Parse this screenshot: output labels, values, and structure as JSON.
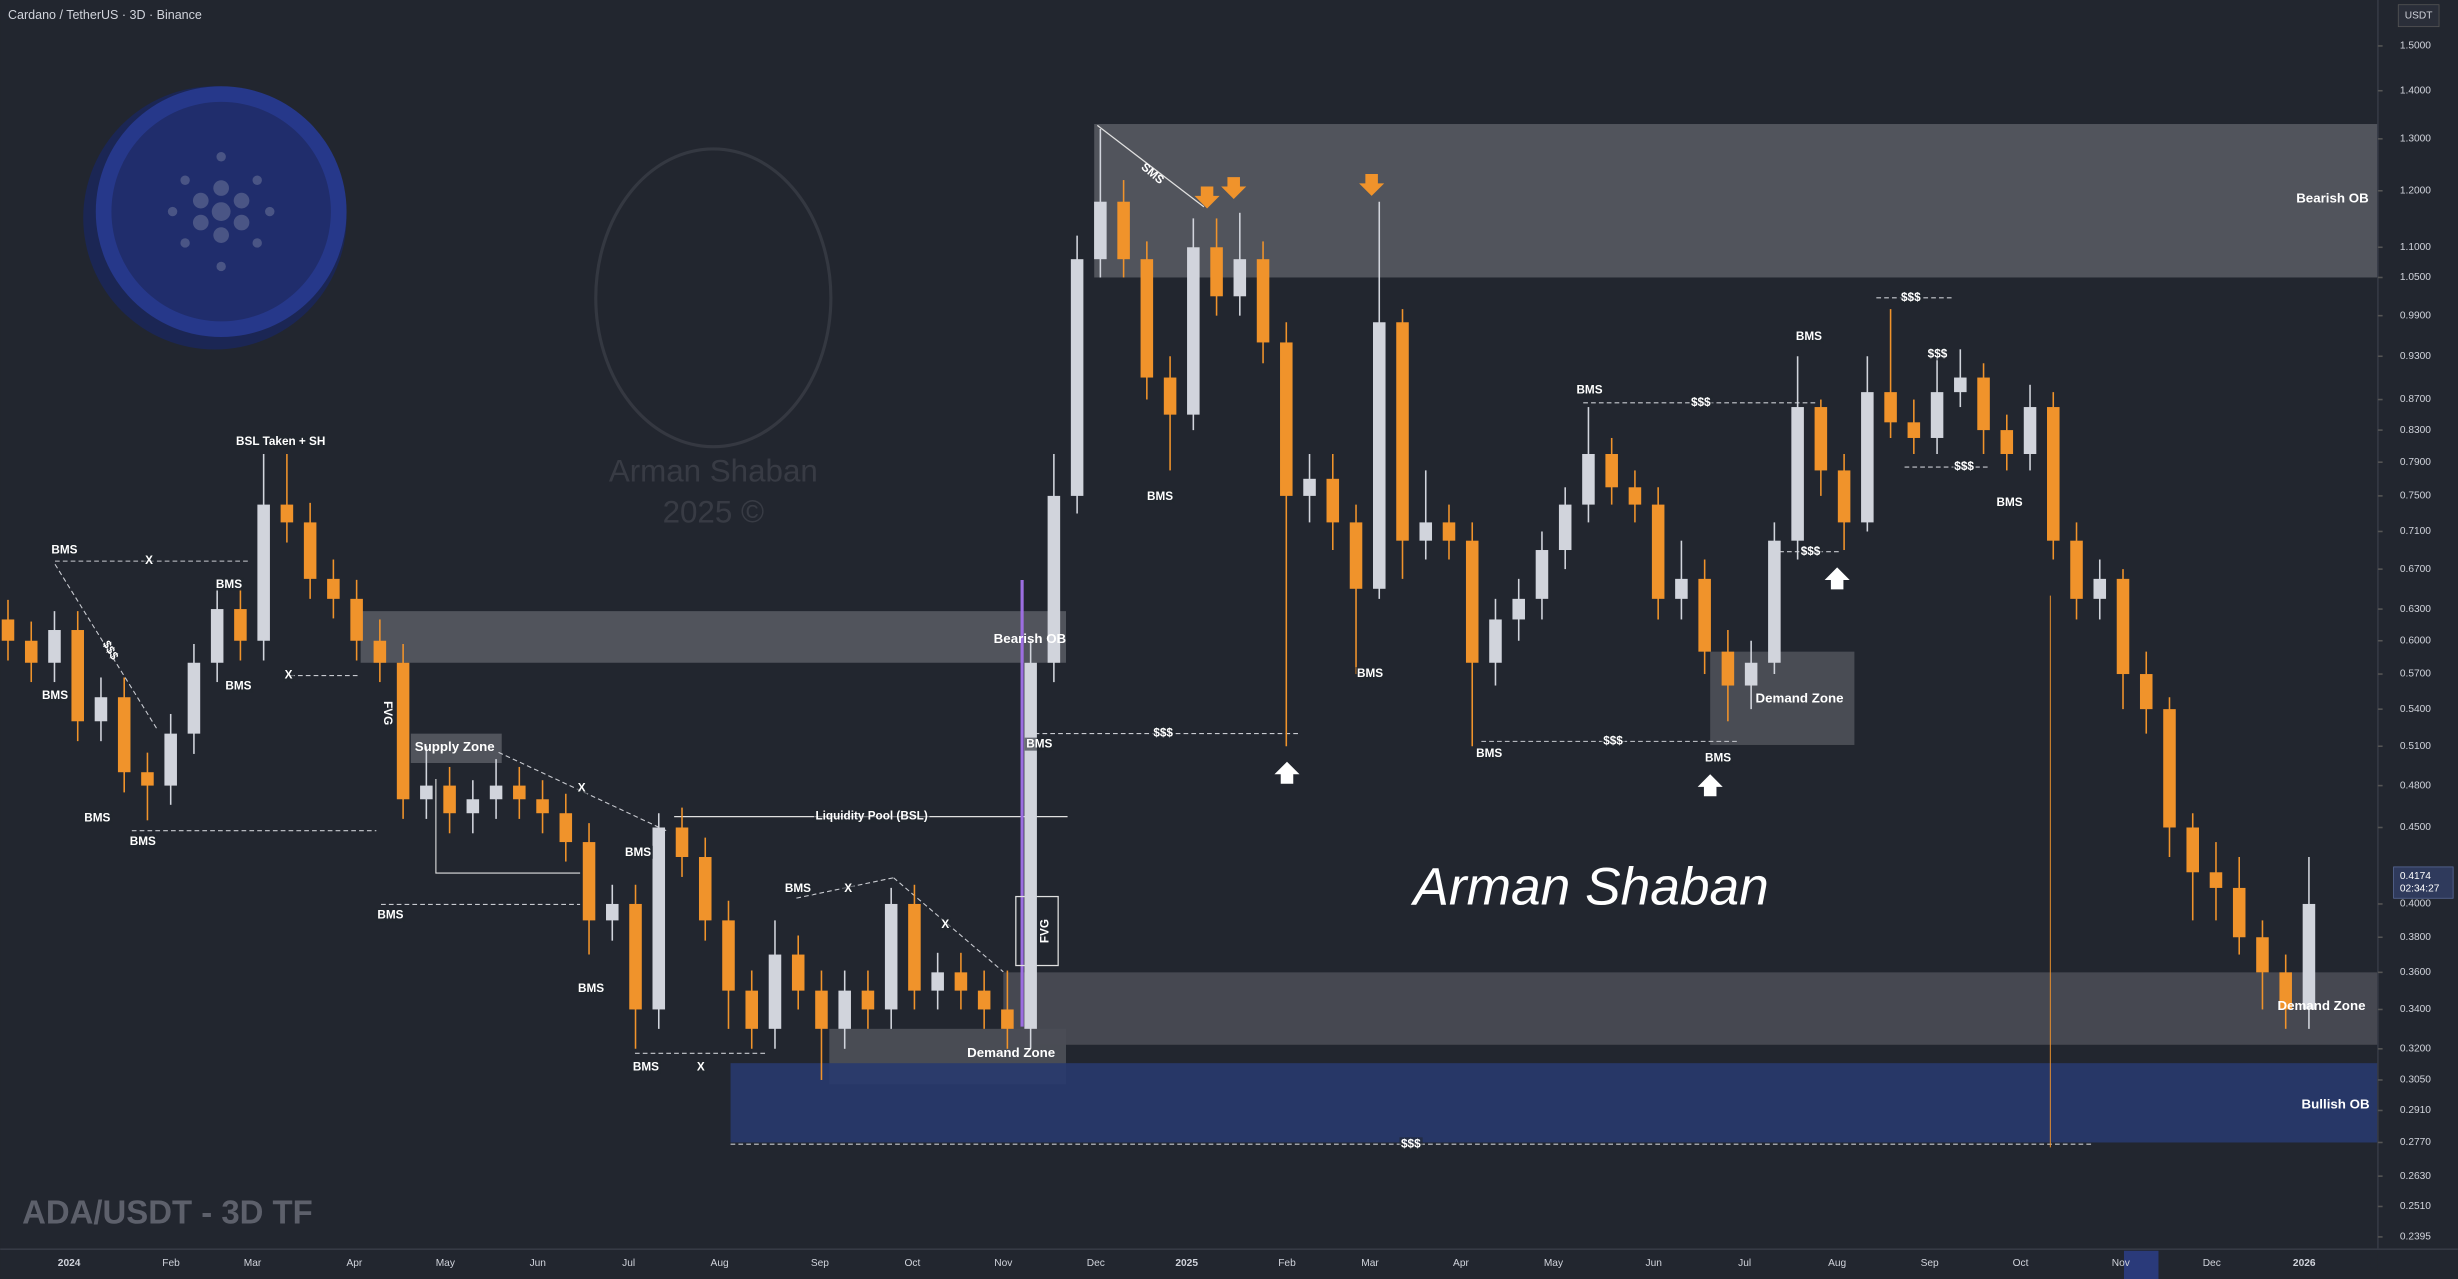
{
  "chart_data": {
    "type": "candlestick",
    "title": "Cardano / TetherUS · 3D · Binance",
    "subtitle": "ADA/USDT - 3D TF",
    "y_axis_label": "USDT",
    "log_scale": true,
    "ylim": [
      0.235,
      1.61
    ],
    "yticks": [
      {
        "value": 1.5,
        "label": "1.5000"
      },
      {
        "value": 1.4,
        "label": "1.4000"
      },
      {
        "value": 1.3,
        "label": "1.3000"
      },
      {
        "value": 1.2,
        "label": "1.2000"
      },
      {
        "value": 1.1,
        "label": "1.1000"
      },
      {
        "value": 1.05,
        "label": "1.0500"
      },
      {
        "value": 0.99,
        "label": "0.9900"
      },
      {
        "value": 0.93,
        "label": "0.9300"
      },
      {
        "value": 0.87,
        "label": "0.8700"
      },
      {
        "value": 0.83,
        "label": "0.8300"
      },
      {
        "value": 0.79,
        "label": "0.7900"
      },
      {
        "value": 0.75,
        "label": "0.7500"
      },
      {
        "value": 0.71,
        "label": "0.7100"
      },
      {
        "value": 0.67,
        "label": "0.6700"
      },
      {
        "value": 0.63,
        "label": "0.6300"
      },
      {
        "value": 0.6,
        "label": "0.6000"
      },
      {
        "value": 0.57,
        "label": "0.5700"
      },
      {
        "value": 0.54,
        "label": "0.5400"
      },
      {
        "value": 0.51,
        "label": "0.5100"
      },
      {
        "value": 0.48,
        "label": "0.4800"
      },
      {
        "value": 0.45,
        "label": "0.4500"
      },
      {
        "value": 0.4,
        "label": "0.4000"
      },
      {
        "value": 0.38,
        "label": "0.3800"
      },
      {
        "value": 0.36,
        "label": "0.3600"
      },
      {
        "value": 0.34,
        "label": "0.3400"
      },
      {
        "value": 0.32,
        "label": "0.3200"
      },
      {
        "value": 0.305,
        "label": "0.3050"
      },
      {
        "value": 0.291,
        "label": "0.2910"
      },
      {
        "value": 0.277,
        "label": "0.2770"
      },
      {
        "value": 0.263,
        "label": "0.2630"
      },
      {
        "value": 0.251,
        "label": "0.2510"
      },
      {
        "value": 0.2395,
        "label": "0.2395"
      }
    ],
    "x_labels": [
      "2024",
      "Feb",
      "Mar",
      "Apr",
      "May",
      "Jun",
      "Jul",
      "Aug",
      "Sep",
      "Oct",
      "Nov",
      "Dec",
      "2025",
      "Feb",
      "Mar",
      "Apr",
      "May",
      "Jun",
      "Jul",
      "Aug",
      "Sep",
      "Oct",
      "Nov",
      "Dec",
      "2026"
    ],
    "up_color": "#d1d4dc",
    "down_color": "#f0932b",
    "series": [
      {
        "name": "ADA/USDT",
        "open": [
          0.62,
          0.6,
          0.58,
          0.61,
          0.53,
          0.55,
          0.49,
          0.48,
          0.52,
          0.58,
          0.63,
          0.6,
          0.74,
          0.72,
          0.66,
          0.64,
          0.6,
          0.58,
          0.47,
          0.48,
          0.46,
          0.47,
          0.48,
          0.47,
          0.46,
          0.44,
          0.39,
          0.4,
          0.34,
          0.45,
          0.43,
          0.39,
          0.35,
          0.33,
          0.37,
          0.35,
          0.33,
          0.35,
          0.34,
          0.4,
          0.35,
          0.36,
          0.35,
          0.34,
          0.33,
          0.58,
          0.75,
          1.08,
          1.18,
          1.08,
          0.9,
          0.85,
          1.1,
          1.02,
          1.08,
          0.95,
          0.75,
          0.77,
          0.72,
          0.65,
          0.98,
          0.7,
          0.72,
          0.7,
          0.58,
          0.62,
          0.64,
          0.69,
          0.74,
          0.8,
          0.76,
          0.74,
          0.64,
          0.66,
          0.59,
          0.56,
          0.58,
          0.7,
          0.86,
          0.78,
          0.72,
          0.88,
          0.84,
          0.82,
          0.88,
          0.9,
          0.83,
          0.8,
          0.86,
          0.7,
          0.64,
          0.66,
          0.57,
          0.54,
          0.45,
          0.42,
          0.41,
          0.38,
          0.36,
          0.34
        ],
        "high": [
          0.639,
          0.618,
          0.628,
          0.628,
          0.567,
          0.567,
          0.505,
          0.536,
          0.597,
          0.649,
          0.649,
          0.8,
          0.8,
          0.742,
          0.68,
          0.659,
          0.62,
          0.597,
          0.51,
          0.494,
          0.484,
          0.5,
          0.494,
          0.484,
          0.474,
          0.453,
          0.412,
          0.412,
          0.46,
          0.464,
          0.443,
          0.402,
          0.361,
          0.39,
          0.381,
          0.361,
          0.361,
          0.361,
          0.41,
          0.412,
          0.371,
          0.371,
          0.361,
          0.361,
          0.6,
          0.8,
          1.12,
          1.32,
          1.22,
          1.11,
          0.93,
          1.15,
          1.15,
          1.16,
          1.11,
          0.98,
          0.8,
          0.8,
          0.74,
          1.18,
          1.0,
          0.78,
          0.74,
          0.72,
          0.64,
          0.66,
          0.71,
          0.76,
          0.86,
          0.82,
          0.78,
          0.76,
          0.7,
          0.68,
          0.61,
          0.6,
          0.72,
          0.93,
          0.87,
          0.8,
          0.93,
          1.0,
          0.87,
          0.93,
          0.94,
          0.92,
          0.85,
          0.89,
          0.88,
          0.72,
          0.68,
          0.67,
          0.59,
          0.55,
          0.46,
          0.44,
          0.43,
          0.39,
          0.37,
          0.43
        ],
        "low": [
          0.582,
          0.563,
          0.563,
          0.514,
          0.514,
          0.475,
          0.455,
          0.466,
          0.504,
          0.563,
          0.582,
          0.582,
          0.698,
          0.64,
          0.621,
          0.582,
          0.563,
          0.456,
          0.456,
          0.446,
          0.446,
          0.456,
          0.456,
          0.446,
          0.427,
          0.37,
          0.378,
          0.32,
          0.33,
          0.417,
          0.378,
          0.33,
          0.32,
          0.32,
          0.34,
          0.305,
          0.32,
          0.33,
          0.33,
          0.34,
          0.34,
          0.34,
          0.33,
          0.32,
          0.32,
          0.563,
          0.73,
          1.05,
          1.05,
          0.87,
          0.78,
          0.83,
          0.99,
          0.99,
          0.92,
          0.51,
          0.72,
          0.69,
          0.57,
          0.64,
          0.66,
          0.68,
          0.68,
          0.51,
          0.56,
          0.6,
          0.62,
          0.67,
          0.72,
          0.74,
          0.72,
          0.62,
          0.62,
          0.57,
          0.53,
          0.54,
          0.57,
          0.68,
          0.75,
          0.69,
          0.71,
          0.82,
          0.8,
          0.8,
          0.86,
          0.8,
          0.78,
          0.78,
          0.68,
          0.62,
          0.62,
          0.54,
          0.52,
          0.43,
          0.39,
          0.39,
          0.37,
          0.34,
          0.33,
          0.33
        ],
        "close": [
          0.6,
          0.58,
          0.61,
          0.53,
          0.55,
          0.49,
          0.48,
          0.52,
          0.58,
          0.63,
          0.6,
          0.74,
          0.72,
          0.66,
          0.64,
          0.6,
          0.58,
          0.47,
          0.48,
          0.46,
          0.47,
          0.48,
          0.47,
          0.46,
          0.44,
          0.39,
          0.4,
          0.34,
          0.45,
          0.43,
          0.39,
          0.35,
          0.33,
          0.37,
          0.35,
          0.33,
          0.35,
          0.34,
          0.4,
          0.35,
          0.36,
          0.35,
          0.34,
          0.33,
          0.58,
          0.75,
          1.08,
          1.18,
          1.08,
          0.9,
          0.85,
          1.1,
          1.02,
          1.08,
          0.95,
          0.75,
          0.77,
          0.72,
          0.65,
          0.98,
          0.7,
          0.72,
          0.7,
          0.58,
          0.62,
          0.64,
          0.69,
          0.74,
          0.8,
          0.76,
          0.74,
          0.64,
          0.66,
          0.59,
          0.56,
          0.58,
          0.7,
          0.86,
          0.78,
          0.72,
          0.88,
          0.84,
          0.82,
          0.88,
          0.9,
          0.83,
          0.8,
          0.86,
          0.7,
          0.64,
          0.66,
          0.57,
          0.54,
          0.45,
          0.42,
          0.41,
          0.38,
          0.36,
          0.34,
          0.4
        ]
      }
    ],
    "last_price": {
      "value": 0.4174,
      "label": "0.4174"
    },
    "countdown": "02:34:27",
    "zones": [
      {
        "label": "Bearish OB",
        "top": 1.33,
        "bottom": 1.05,
        "color": "#575a62"
      },
      {
        "label": "Bearish OB",
        "top": 0.628,
        "bottom": 0.58,
        "color": "#575a62"
      },
      {
        "label": "Demand Zone",
        "top": 0.59,
        "bottom": 0.511,
        "color": "#4e5159"
      },
      {
        "label": "Supply Zone",
        "top": 0.52,
        "bottom": 0.497,
        "color": "#575a62"
      },
      {
        "label": "Demand Zone",
        "top": 0.33,
        "bottom": 0.303,
        "color": "#4e5159"
      },
      {
        "label": "Demand Zone",
        "top": 0.36,
        "bottom": 0.322,
        "color": "#4a4d55"
      },
      {
        "label": "Bullish OB",
        "top": 0.313,
        "bottom": 0.277,
        "color": "#283a6e"
      }
    ],
    "annotations": [
      "BMS",
      "BMS",
      "BMS",
      "BMS",
      "BMS",
      "BMS",
      "BMS",
      "BMS",
      "BMS",
      "BMS",
      "BMS",
      "BMS",
      "BMS",
      "BMS",
      "BMS",
      "BMS",
      "BMS",
      "BMS",
      "BMS",
      "BSL Taken + SH",
      "X",
      "X",
      "X",
      "X",
      "X",
      "X",
      "$$$",
      "$$$",
      "$$$",
      "$$$",
      "$$$",
      "$$$",
      "$$$",
      "$$$",
      "SMS",
      "$$$",
      "FVG",
      "FVG",
      "Liquidity Pool (BSL)"
    ],
    "signature": "Arman Shaban",
    "watermark_name": "Arman Shaban",
    "watermark_year": "2025 ©"
  }
}
